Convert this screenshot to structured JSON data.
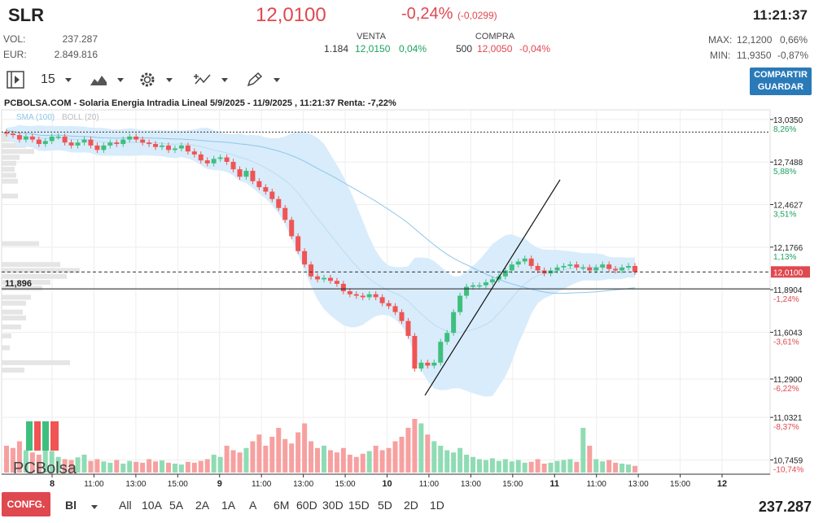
{
  "header": {
    "ticker": "SLR",
    "price": "12,0100",
    "change_pct": "-0,24%",
    "change_abs": "(-0,0299)",
    "time": "11:21:37",
    "vol_label": "VOL:",
    "vol_value": "237.287",
    "eur_label": "EUR:",
    "eur_value": "2.849.816",
    "venta_label": "VENTA",
    "venta_qty": "1.184",
    "venta_price": "12,0150",
    "venta_pct": "0,04%",
    "compra_label": "COMPRA",
    "compra_qty": "500",
    "compra_price": "12,0050",
    "compra_pct": "-0,04%",
    "max_label": "MAX:",
    "max_value": "12,1200",
    "max_pct": "0,66%",
    "min_label": "MIN:",
    "min_value": "11,9350",
    "min_pct": "-0,87%"
  },
  "toolbar": {
    "interval": "15",
    "share_line1": "COMPARTIR",
    "share_line2": "GUARDAR"
  },
  "chart_title": "PCBOLSA.COM - Solaria Energia Intradia Lineal 5/9/2025 - 11/9/2025 , 11:21:37 Renta: -7,22%",
  "legend": {
    "sma": "SMA (100)",
    "boll": "BOLL (20)"
  },
  "watermark": "PCBolsa",
  "hline_label": "11,896",
  "bottom": {
    "confg": "CONFG.",
    "mode": "Bl",
    "ranges": [
      "All",
      "10A",
      "5A",
      "2A",
      "1A",
      "A",
      "6M",
      "60D",
      "30D",
      "15D",
      "5D",
      "2D",
      "1D"
    ],
    "volume_total": "237.287"
  },
  "colors": {
    "up": "#3fbf7f",
    "down": "#f05454",
    "band": "#d8ecfb",
    "sma": "#8cc7ea",
    "last": "#e0484f"
  },
  "chart_data": {
    "type": "candlestick",
    "title": "Solaria Energia Intradia Lineal 5/9/2025 - 11/9/2025",
    "ylim": [
      10.65,
      13.1
    ],
    "y_ticks": [
      {
        "value": 13.035,
        "label": "13,0350",
        "pct": "8,26%"
      },
      {
        "value": 12.7488,
        "label": "12,7488",
        "pct": "5,88%"
      },
      {
        "value": 12.4627,
        "label": "12,4627",
        "pct": "3,51%"
      },
      {
        "value": 12.1766,
        "label": "12,1766",
        "pct": "1,13%"
      },
      {
        "value": 11.8904,
        "label": "11,8904",
        "pct": "-1,24%"
      },
      {
        "value": 11.6043,
        "label": "11,6043",
        "pct": "-3,61%"
      },
      {
        "value": 11.29,
        "label": "11,2900",
        "pct": "-6,22%"
      },
      {
        "value": 11.0321,
        "label": "11,0321",
        "pct": "-8,37%"
      },
      {
        "value": 10.7459,
        "label": "10,7459",
        "pct": "-10,74%"
      }
    ],
    "x_ticks": [
      "8",
      "11:00",
      "13:00",
      "15:00",
      "9",
      "11:00",
      "13:00",
      "15:00",
      "10",
      "11:00",
      "13:00",
      "15:00",
      "11",
      "11:00",
      "13:00",
      "15:00",
      "12"
    ],
    "last_price": 12.01,
    "last_label": "12,0100",
    "ref_line": 12.95,
    "support_line": 11.896,
    "trendline": [
      [
        11.18,
        0
      ],
      [
        12.63,
        1
      ]
    ],
    "closes": [
      12.94,
      12.93,
      12.9,
      12.92,
      12.9,
      12.87,
      12.89,
      12.92,
      12.92,
      12.88,
      12.86,
      12.88,
      12.9,
      12.86,
      12.83,
      12.86,
      12.88,
      12.87,
      12.9,
      12.92,
      12.9,
      12.88,
      12.87,
      12.85,
      12.86,
      12.83,
      12.84,
      12.86,
      12.82,
      12.8,
      12.76,
      12.74,
      12.77,
      12.78,
      12.75,
      12.7,
      12.65,
      12.69,
      12.62,
      12.58,
      12.55,
      12.5,
      12.44,
      12.36,
      12.25,
      12.15,
      12.06,
      11.98,
      11.96,
      11.97,
      11.95,
      11.93,
      11.88,
      11.86,
      11.85,
      11.84,
      11.86,
      11.84,
      11.8,
      11.78,
      11.74,
      11.68,
      11.58,
      11.36,
      11.4,
      11.38,
      11.4,
      11.54,
      11.6,
      11.74,
      11.85,
      11.91,
      11.92,
      11.92,
      11.94,
      11.96,
      11.98,
      12.02,
      12.06,
      12.08,
      12.1,
      12.05,
      12.02,
      12.0,
      12.02,
      12.04,
      12.05,
      12.06,
      12.04,
      12.04,
      12.02,
      12.04,
      12.06,
      12.03,
      12.02,
      12.04,
      12.05,
      12.01
    ],
    "volumes": [
      60,
      55,
      70,
      50,
      45,
      40,
      52,
      48,
      35,
      30,
      28,
      34,
      40,
      26,
      30,
      25,
      22,
      28,
      20,
      26,
      24,
      22,
      30,
      25,
      27,
      22,
      20,
      18,
      24,
      22,
      26,
      30,
      40,
      35,
      60,
      50,
      45,
      55,
      70,
      85,
      60,
      80,
      100,
      75,
      65,
      90,
      110,
      70,
      55,
      60,
      50,
      45,
      55,
      40,
      35,
      42,
      48,
      60,
      50,
      55,
      70,
      80,
      100,
      120,
      110,
      85,
      70,
      60,
      50,
      45,
      55,
      40,
      35,
      30,
      28,
      32,
      26,
      30,
      25,
      28,
      22,
      24,
      30,
      20,
      22,
      26,
      28,
      30,
      24,
      100,
      60,
      30,
      25,
      28,
      22,
      20,
      18,
      15
    ]
  }
}
